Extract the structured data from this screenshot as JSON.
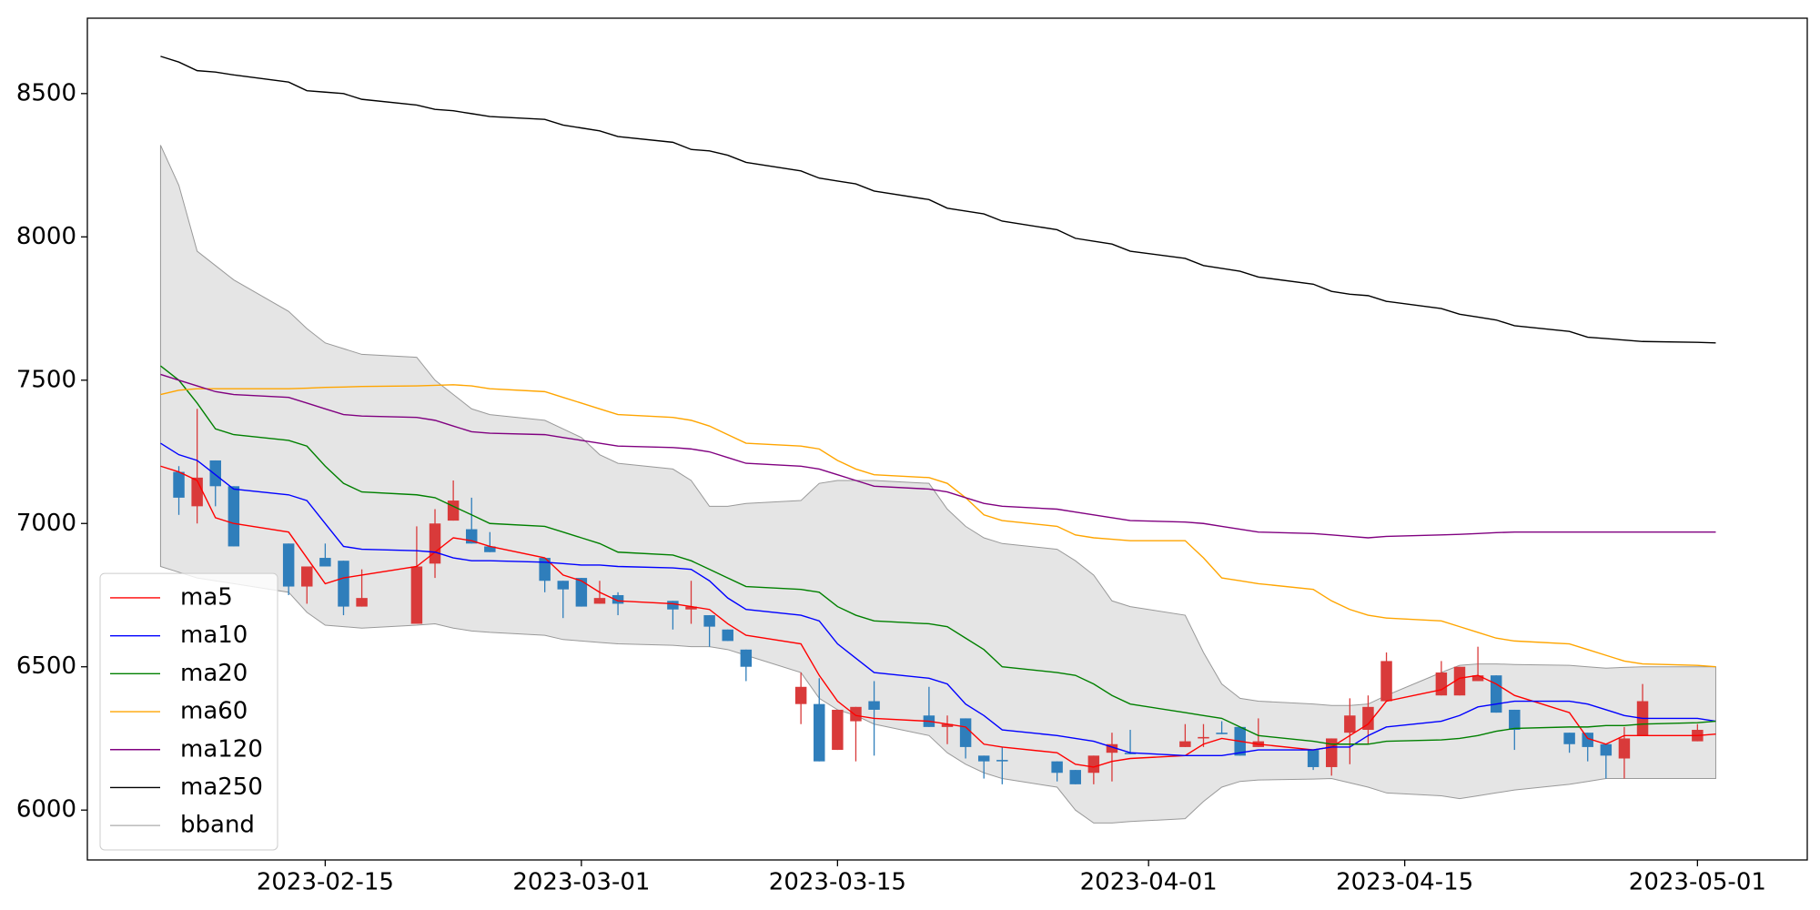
{
  "chart_data": {
    "type": "candlestick",
    "x": [
      "2023-02-06",
      "2023-02-07",
      "2023-02-08",
      "2023-02-09",
      "2023-02-10",
      "2023-02-13",
      "2023-02-14",
      "2023-02-15",
      "2023-02-16",
      "2023-02-17",
      "2023-02-20",
      "2023-02-21",
      "2023-02-22",
      "2023-02-23",
      "2023-02-24",
      "2023-02-27",
      "2023-02-28",
      "2023-03-01",
      "2023-03-02",
      "2023-03-03",
      "2023-03-06",
      "2023-03-07",
      "2023-03-08",
      "2023-03-09",
      "2023-03-10",
      "2023-03-13",
      "2023-03-14",
      "2023-03-15",
      "2023-03-16",
      "2023-03-17",
      "2023-03-20",
      "2023-03-21",
      "2023-03-22",
      "2023-03-23",
      "2023-03-24",
      "2023-03-27",
      "2023-03-28",
      "2023-03-29",
      "2023-03-30",
      "2023-03-31",
      "2023-04-03",
      "2023-04-04",
      "2023-04-05",
      "2023-04-06",
      "2023-04-07",
      "2023-04-10",
      "2023-04-11",
      "2023-04-12",
      "2023-04-13",
      "2023-04-14",
      "2023-04-17",
      "2023-04-18",
      "2023-04-19",
      "2023-04-20",
      "2023-04-21",
      "2023-04-24",
      "2023-04-25",
      "2023-04-26",
      "2023-04-27",
      "2023-04-28",
      "2023-05-01",
      "2023-05-02"
    ],
    "open": [
      null,
      7180,
      7060,
      7220,
      7130,
      6930,
      6780,
      6880,
      6870,
      6710,
      6650,
      6860,
      7010,
      6980,
      6920,
      6880,
      6800,
      6810,
      6720,
      6750,
      6730,
      6700,
      6680,
      6630,
      6560,
      6370,
      6370,
      6210,
      6310,
      6380,
      6330,
      6290,
      6320,
      6190,
      6175,
      6170,
      6140,
      6130,
      6200,
      6200,
      6220,
      6250,
      6270,
      6290,
      6220,
      6210,
      6150,
      6270,
      6280,
      6380,
      6400,
      6400,
      6450,
      6470,
      6350,
      6270,
      6270,
      6230,
      6180,
      6260,
      6240,
      null
    ],
    "high": [
      null,
      7200,
      7400,
      7220,
      7130,
      6930,
      6850,
      6930,
      6870,
      6840,
      6990,
      7050,
      7150,
      7090,
      6970,
      6880,
      6800,
      6810,
      6800,
      6760,
      6730,
      6800,
      6680,
      6630,
      6560,
      6480,
      6460,
      6350,
      6360,
      6450,
      6430,
      6330,
      6320,
      6190,
      6220,
      6170,
      6140,
      6190,
      6270,
      6280,
      6300,
      6300,
      6310,
      6290,
      6320,
      6210,
      6250,
      6390,
      6400,
      6550,
      6520,
      6500,
      6570,
      6470,
      6350,
      6270,
      6270,
      6230,
      6290,
      6440,
      6300,
      null
    ],
    "low": [
      null,
      7030,
      7000,
      7060,
      6920,
      6750,
      6720,
      6850,
      6680,
      6710,
      6650,
      6810,
      7010,
      6930,
      6900,
      6760,
      6670,
      6710,
      6720,
      6680,
      6630,
      6650,
      6570,
      6590,
      6450,
      6300,
      6170,
      6210,
      6170,
      6190,
      6290,
      6230,
      6180,
      6110,
      6090,
      6100,
      6090,
      6090,
      6100,
      6195,
      6220,
      6220,
      6265,
      6190,
      6220,
      6140,
      6120,
      6160,
      6230,
      6380,
      6400,
      6400,
      6450,
      6340,
      6210,
      6200,
      6170,
      6110,
      6110,
      6260,
      6240,
      null
    ],
    "close": [
      null,
      7090,
      7160,
      7130,
      6920,
      6780,
      6850,
      6850,
      6710,
      6740,
      6850,
      7000,
      7080,
      6930,
      6900,
      6800,
      6770,
      6710,
      6740,
      6720,
      6700,
      6710,
      6640,
      6590,
      6500,
      6430,
      6170,
      6350,
      6360,
      6350,
      6290,
      6300,
      6220,
      6170,
      6170,
      6130,
      6090,
      6190,
      6230,
      6195,
      6240,
      6255,
      6265,
      6190,
      6240,
      6150,
      6250,
      6330,
      6360,
      6520,
      6480,
      6500,
      6470,
      6340,
      6280,
      6230,
      6220,
      6190,
      6250,
      6380,
      6280,
      null
    ],
    "up_color": "#d93a3a",
    "down_color": "#2f7ebb",
    "series": [
      {
        "name": "ma5",
        "color": "#ff0000",
        "values": [
          7200,
          7180,
          7150,
          7020,
          7000,
          6970,
          6880,
          6790,
          6810,
          6820,
          6850,
          6900,
          6950,
          6940,
          6920,
          6880,
          6820,
          6800,
          6760,
          6730,
          6720,
          6710,
          6700,
          6650,
          6610,
          6580,
          6470,
          6380,
          6330,
          6320,
          6310,
          6300,
          6290,
          6230,
          6220,
          6200,
          6160,
          6150,
          6170,
          6180,
          6190,
          6230,
          6250,
          6240,
          6230,
          6210,
          6220,
          6260,
          6300,
          6380,
          6420,
          6460,
          6470,
          6440,
          6400,
          6340,
          6250,
          6230,
          6260,
          6260,
          6260,
          6265
        ]
      },
      {
        "name": "ma10",
        "color": "#0000ff",
        "values": [
          7280,
          7240,
          7220,
          7170,
          7120,
          7100,
          7080,
          7000,
          6920,
          6910,
          6905,
          6900,
          6880,
          6870,
          6870,
          6865,
          6860,
          6855,
          6855,
          6850,
          6845,
          6840,
          6800,
          6740,
          6700,
          6680,
          6660,
          6580,
          6530,
          6480,
          6460,
          6440,
          6370,
          6330,
          6280,
          6260,
          6250,
          6240,
          6220,
          6200,
          6190,
          6190,
          6190,
          6200,
          6210,
          6210,
          6220,
          6220,
          6260,
          6290,
          6310,
          6330,
          6360,
          6370,
          6380,
          6380,
          6370,
          6350,
          6330,
          6320,
          6320,
          6310
        ]
      },
      {
        "name": "ma20",
        "color": "#008000",
        "values": [
          7550,
          7500,
          7420,
          7330,
          7310,
          7290,
          7270,
          7200,
          7140,
          7110,
          7100,
          7090,
          7060,
          7030,
          7000,
          6990,
          6970,
          6950,
          6930,
          6900,
          6890,
          6870,
          6840,
          6810,
          6780,
          6770,
          6760,
          6710,
          6680,
          6660,
          6650,
          6640,
          6600,
          6560,
          6500,
          6480,
          6470,
          6440,
          6400,
          6370,
          6340,
          6330,
          6320,
          6290,
          6260,
          6240,
          6230,
          6230,
          6230,
          6240,
          6245,
          6250,
          6260,
          6275,
          6285,
          6290,
          6290,
          6295,
          6295,
          6300,
          6305,
          6310
        ]
      },
      {
        "name": "ma60",
        "color": "#ffa500",
        "values": [
          7450,
          7465,
          7470,
          7470,
          7470,
          7470,
          7472,
          7475,
          7476,
          7478,
          7480,
          7482,
          7484,
          7480,
          7470,
          7460,
          7440,
          7420,
          7400,
          7380,
          7370,
          7360,
          7340,
          7310,
          7280,
          7270,
          7260,
          7220,
          7190,
          7170,
          7160,
          7140,
          7090,
          7030,
          7010,
          6990,
          6960,
          6950,
          6945,
          6940,
          6940,
          6880,
          6810,
          6800,
          6790,
          6770,
          6730,
          6700,
          6680,
          6670,
          6660,
          6640,
          6620,
          6600,
          6590,
          6580,
          6560,
          6540,
          6520,
          6510,
          6505,
          6500
        ]
      },
      {
        "name": "ma120",
        "color": "#800080",
        "values": [
          7520,
          7500,
          7480,
          7460,
          7450,
          7440,
          7420,
          7400,
          7380,
          7375,
          7370,
          7360,
          7340,
          7320,
          7315,
          7310,
          7300,
          7290,
          7280,
          7270,
          7265,
          7260,
          7250,
          7230,
          7210,
          7200,
          7190,
          7170,
          7150,
          7130,
          7120,
          7110,
          7090,
          7070,
          7060,
          7050,
          7040,
          7030,
          7020,
          7010,
          7005,
          7000,
          6990,
          6980,
          6970,
          6965,
          6960,
          6955,
          6950,
          6955,
          6960,
          6962,
          6965,
          6968,
          6970,
          6970,
          6970,
          6970,
          6970,
          6970,
          6970,
          6970
        ]
      },
      {
        "name": "ma250",
        "color": "#000000",
        "values": [
          8630,
          8610,
          8580,
          8575,
          8565,
          8540,
          8510,
          8505,
          8500,
          8480,
          8460,
          8445,
          8440,
          8430,
          8420,
          8410,
          8390,
          8380,
          8370,
          8350,
          8330,
          8305,
          8300,
          8285,
          8260,
          8230,
          8205,
          8195,
          8185,
          8160,
          8130,
          8100,
          8090,
          8080,
          8055,
          8025,
          7995,
          7985,
          7975,
          7950,
          7925,
          7900,
          7890,
          7880,
          7860,
          7835,
          7810,
          7800,
          7795,
          7775,
          7750,
          7730,
          7720,
          7710,
          7690,
          7670,
          7650,
          7645,
          7640,
          7635,
          7632,
          7630
        ]
      }
    ],
    "band": {
      "name": "bband",
      "color": "#999999",
      "fill": "#e5e5e5",
      "upper": [
        8320,
        8180,
        7950,
        7900,
        7850,
        7740,
        7680,
        7630,
        7610,
        7590,
        7580,
        7500,
        7450,
        7400,
        7380,
        7360,
        7330,
        7300,
        7240,
        7210,
        7190,
        7150,
        7060,
        7060,
        7070,
        7080,
        7140,
        7150,
        7150,
        7150,
        7140,
        7050,
        6990,
        6950,
        6930,
        6910,
        6870,
        6820,
        6730,
        6710,
        6680,
        6550,
        6440,
        6390,
        6380,
        6370,
        6365,
        6365,
        6370,
        6400,
        6480,
        6505,
        6510,
        6510,
        6508,
        6505,
        6500,
        6495,
        6498,
        6500,
        6500,
        6500
      ],
      "lower": [
        6850,
        6830,
        6810,
        6800,
        6790,
        6760,
        6690,
        6645,
        6640,
        6635,
        6645,
        6650,
        6635,
        6625,
        6620,
        6610,
        6595,
        6590,
        6585,
        6580,
        6575,
        6570,
        6570,
        6560,
        6540,
        6480,
        6390,
        6350,
        6330,
        6300,
        6260,
        6200,
        6160,
        6130,
        6110,
        6080,
        6000,
        5955,
        5955,
        5960,
        5970,
        6030,
        6080,
        6100,
        6105,
        6108,
        6110,
        6095,
        6080,
        6060,
        6050,
        6040,
        6050,
        6060,
        6070,
        6090,
        6100,
        6110,
        6110,
        6110,
        6110,
        6110
      ]
    },
    "xlim": [
      "2023-02-02",
      "2023-05-07"
    ],
    "xticks": [
      "2023-02-15",
      "2023-03-01",
      "2023-03-15",
      "2023-04-01",
      "2023-04-15",
      "2023-05-01"
    ],
    "ylim": [
      5826,
      8763
    ],
    "yticks": [
      6000,
      6500,
      7000,
      7500,
      8000,
      8500
    ],
    "legend": "lower left"
  }
}
